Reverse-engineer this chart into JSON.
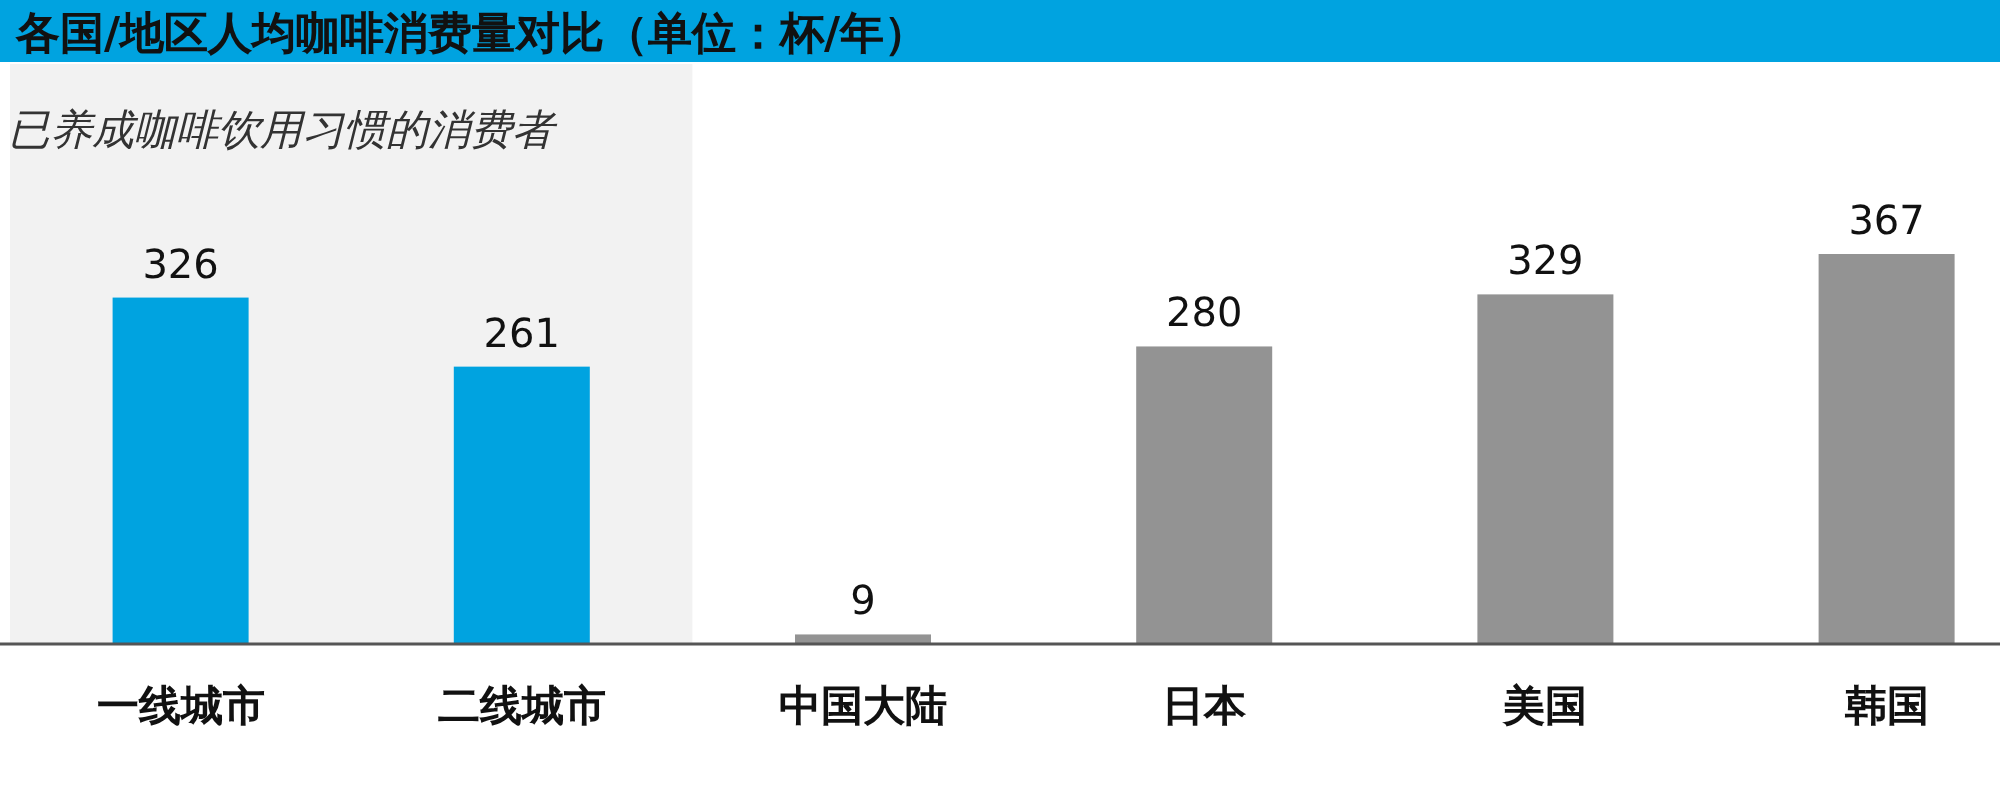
{
  "chart_data": {
    "type": "bar",
    "title": "各国/地区人均咖啡消费量对比（单位：杯/年）",
    "categories": [
      "一线城市",
      "二线城市",
      "中国大陆",
      "日本",
      "美国",
      "韩国"
    ],
    "values": [
      326,
      261,
      9,
      280,
      329,
      367
    ],
    "colors": [
      "#00a3e0",
      "#00a3e0",
      "#939393",
      "#939393",
      "#939393",
      "#939393"
    ],
    "data_labels": true,
    "bands": [
      {
        "axis": "x",
        "from": "一线城市",
        "to": "二线城市",
        "label": "已养成咖啡饮用习惯的消费者",
        "color": "#f2f2f2"
      }
    ]
  }
}
